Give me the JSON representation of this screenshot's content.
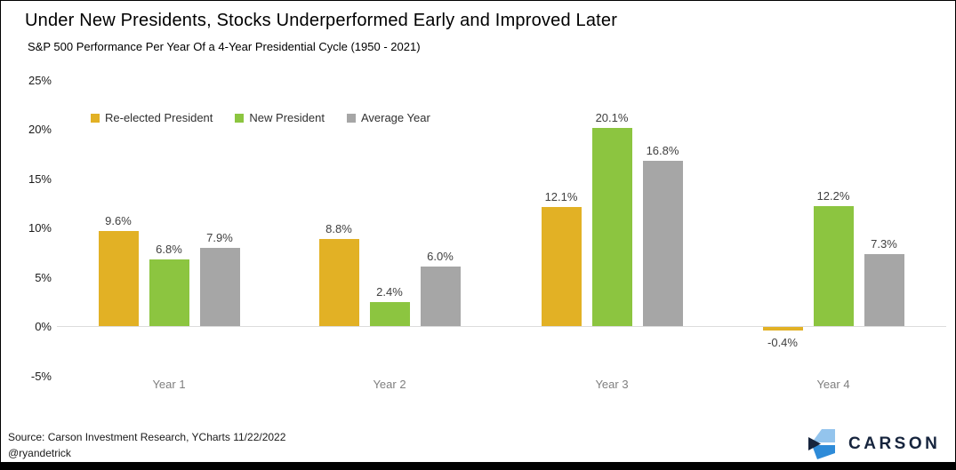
{
  "header": {
    "title": "Under New Presidents, Stocks Underperformed Early and Improved Later",
    "subtitle": "S&P 500 Performance Per Year Of a 4-Year Presidential Cycle (1950 - 2021)"
  },
  "chart_data": {
    "type": "bar",
    "title": "Under New Presidents, Stocks Underperformed Early and Improved Later",
    "subtitle": "S&P 500 Performance Per Year Of a 4-Year Presidential Cycle (1950 - 2021)",
    "categories": [
      "Year 1",
      "Year 2",
      "Year 3",
      "Year 4"
    ],
    "series": [
      {
        "name": "Re-elected President",
        "color": "#E2B125",
        "values": [
          9.6,
          8.8,
          12.1,
          -0.4
        ],
        "labels": [
          "9.6%",
          "8.8%",
          "12.1%",
          "-0.4%"
        ]
      },
      {
        "name": "New President",
        "color": "#8CC540",
        "values": [
          6.8,
          2.4,
          20.1,
          12.2
        ],
        "labels": [
          "6.8%",
          "2.4%",
          "20.1%",
          "12.2%"
        ]
      },
      {
        "name": "Average Year",
        "color": "#A6A6A6",
        "values": [
          7.9,
          6.0,
          16.8,
          7.3
        ],
        "labels": [
          "7.9%",
          "6.0%",
          "16.8%",
          "7.3%"
        ]
      }
    ],
    "xlabel": "",
    "ylabel": "",
    "ylim": [
      -5,
      25
    ],
    "y_ticks": [
      {
        "value": 25,
        "label": "25%"
      },
      {
        "value": 20,
        "label": "20%"
      },
      {
        "value": 15,
        "label": "15%"
      },
      {
        "value": 10,
        "label": "10%"
      },
      {
        "value": 5,
        "label": "5%"
      },
      {
        "value": 0,
        "label": "0%"
      },
      {
        "value": -5,
        "label": "-5%"
      }
    ],
    "grid": "zero-line-only",
    "legend_position": "top-left-inside"
  },
  "footer": {
    "source_line1": "Source: Carson Investment Research, YCharts 11/22/2022",
    "source_line2": "@ryandetrick",
    "brand": "CARSON",
    "brand_icon": "carson-chevron-logo"
  },
  "colors": {
    "reelected": "#E2B125",
    "new_president": "#8CC540",
    "average_year": "#A6A6A6",
    "zero_line": "#DCDCDC",
    "brand_navy": "#16243D",
    "brand_light_blue": "#93C4ED",
    "brand_bright_blue": "#2E8BD8",
    "bottom_bar": "#000000"
  }
}
